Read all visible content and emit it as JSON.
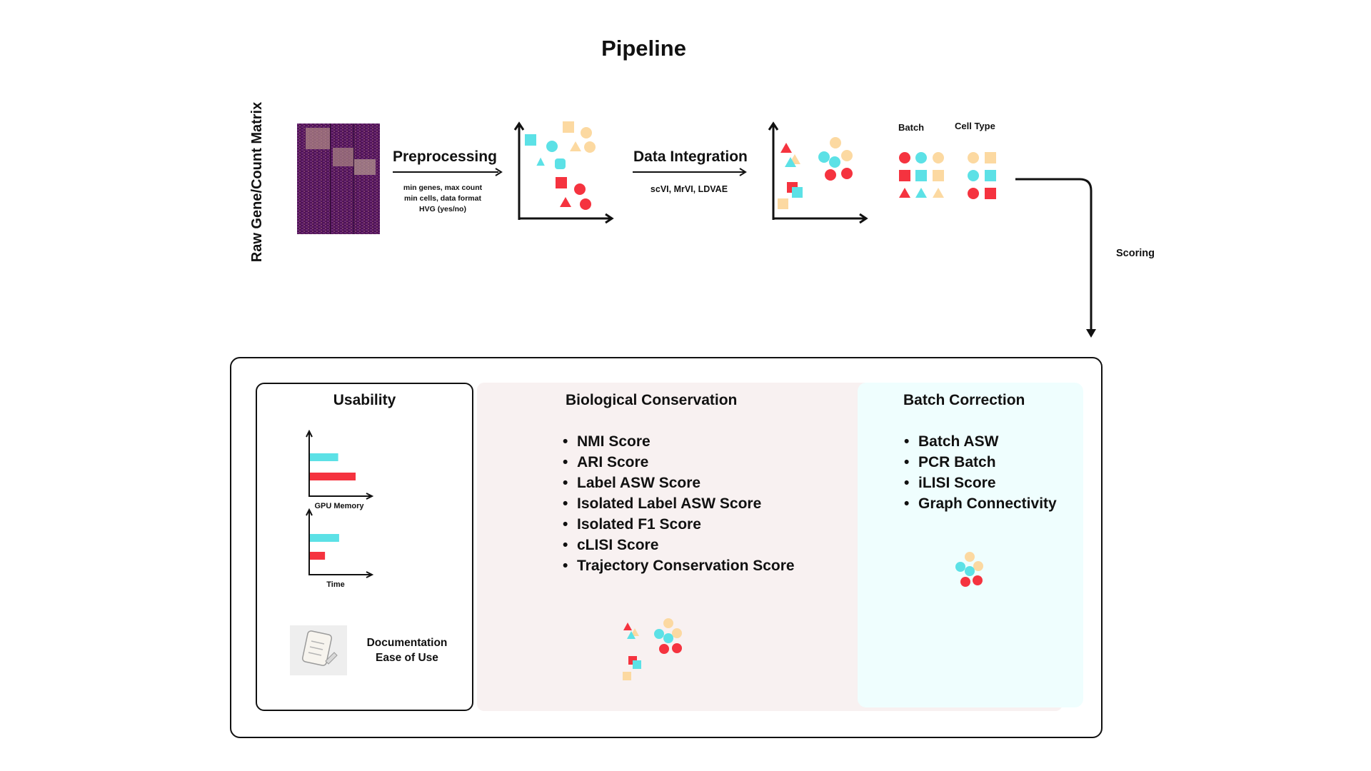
{
  "title": "Pipeline",
  "input": {
    "label": "Raw Gene/Count Matrix"
  },
  "steps": {
    "preprocessing": {
      "label": "Preprocessing",
      "params": [
        "min genes, max count",
        "min cells, data format",
        "HVG (yes/no)"
      ]
    },
    "integration": {
      "label": "Data Integration",
      "methods": "scVI, MrVI, LDVAE"
    }
  },
  "legend": {
    "batch": "Batch",
    "cell_type": "Cell Type"
  },
  "scoring_label": "Scoring",
  "usability": {
    "title": "Usability",
    "gpu_memory_label": "GPU Memory",
    "time_label": "Time",
    "gpu_memory_bars": [
      0.6,
      0.97
    ],
    "time_bars": [
      0.62,
      0.32
    ],
    "documentation": [
      "Documentation",
      "Ease of Use"
    ]
  },
  "bio_conservation": {
    "title": "Biological Conservation",
    "metrics": [
      "NMI Score",
      "ARI Score",
      "Label ASW Score",
      "Isolated Label ASW Score",
      "Isolated F1 Score",
      "cLISI Score",
      "Trajectory Conservation Score"
    ]
  },
  "batch_correction": {
    "title": "Batch Correction",
    "metrics": [
      "Batch ASW",
      "PCR Batch",
      "iLISI Score",
      "Graph Connectivity"
    ]
  },
  "colors": {
    "red": "#f5333f",
    "cyan": "#5ce1e6",
    "peach": "#fcd9a1",
    "heatmap": "#5a1a5e"
  }
}
